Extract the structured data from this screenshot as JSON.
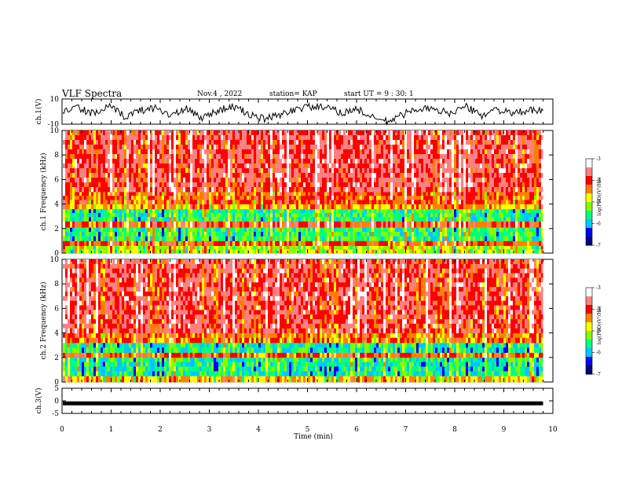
{
  "header": {
    "title": "VLF Spectra",
    "date": "Nov.4 , 2022",
    "station": "station= KAP",
    "start_ut": "start UT =  9 : 30: 1"
  },
  "colors": {
    "spectrogram_scale": [
      "#000080",
      "#0000ff",
      "#00c8ff",
      "#00ff80",
      "#80ff00",
      "#ffff00",
      "#ff8000",
      "#ff0000",
      "#ff8080",
      "#ffffff"
    ],
    "trace": "#000000",
    "background": "#ffffff"
  },
  "chart_data": [
    {
      "type": "line",
      "panel": "ch1-waveform",
      "ylabel": "ch.1(V)",
      "ylim": [
        -10,
        10
      ],
      "y_ticks": [
        "10",
        "-10"
      ],
      "xlim": [
        0,
        10
      ],
      "data_end_min": 9.8,
      "series": [
        {
          "y": [
            0.5,
            3.0,
            -2.0,
            4.0,
            -4.0,
            1.0,
            3.0,
            -3.0,
            2.0,
            -5.0,
            1.0,
            4.0,
            -2.0,
            -6.0,
            -3.0,
            2.0,
            4.0,
            3.0,
            -1.0,
            2.0,
            -5.0,
            -8.0,
            -2.0,
            3.0,
            1.0,
            -1.0,
            4.0,
            -3.0,
            2.0,
            -2.0,
            1.0,
            0.0
          ]
        }
      ]
    },
    {
      "type": "heatmap",
      "panel": "ch1-spectrogram",
      "ylabel": "ch.1 Frequency (kHz)",
      "ylim": [
        0,
        10
      ],
      "y_ticks": [
        "0",
        "2",
        "4",
        "6",
        "8",
        "10"
      ],
      "xlim": [
        0,
        10
      ],
      "data_end_min": 9.8,
      "colorbar": {
        "label": "log(PSD)(V²/Hz)",
        "range": [
          -7,
          -3
        ],
        "ticks": [
          "-3",
          "-4",
          "-5",
          "-6",
          "-7"
        ]
      },
      "bands_khz": [
        {
          "from": 0,
          "to": 0.6,
          "level": -5.0
        },
        {
          "from": 0.6,
          "to": 1.0,
          "level": -4.2
        },
        {
          "from": 1.0,
          "to": 2.1,
          "level": -5.5
        },
        {
          "from": 2.1,
          "to": 2.6,
          "level": -4.0
        },
        {
          "from": 2.6,
          "to": 3.6,
          "level": -5.5
        },
        {
          "from": 3.6,
          "to": 4.0,
          "level": -4.5
        },
        {
          "from": 4.0,
          "to": 5.0,
          "level": -4.2
        },
        {
          "from": 5.0,
          "to": 10.0,
          "level": -3.8
        }
      ]
    },
    {
      "type": "heatmap",
      "panel": "ch2-spectrogram",
      "ylabel": "ch.2 Frequency (kHz)",
      "ylim": [
        0,
        10
      ],
      "y_ticks": [
        "0",
        "2",
        "4",
        "6",
        "8",
        "10"
      ],
      "xlim": [
        0,
        10
      ],
      "data_end_min": 9.8,
      "colorbar": {
        "label": "log(PSD)(V²/Hz)",
        "range": [
          -7,
          -3
        ],
        "ticks": [
          "-3",
          "-4",
          "-5",
          "-6",
          "-7"
        ]
      },
      "bands_khz": [
        {
          "from": 0,
          "to": 0.5,
          "level": -4.6
        },
        {
          "from": 0.5,
          "to": 2.0,
          "level": -5.6
        },
        {
          "from": 2.0,
          "to": 2.4,
          "level": -4.2
        },
        {
          "from": 2.4,
          "to": 3.2,
          "level": -5.6
        },
        {
          "from": 3.2,
          "to": 4.0,
          "level": -4.3
        },
        {
          "from": 4.0,
          "to": 10.0,
          "level": -3.8
        }
      ]
    },
    {
      "type": "line",
      "panel": "ch3-waveform",
      "ylabel": "ch.3(V)",
      "ylim": [
        -5,
        5
      ],
      "y_ticks": [
        "5",
        "0",
        "-5"
      ],
      "xlim": [
        0,
        10
      ],
      "data_end_min": 9.8,
      "series": [
        {
          "y": [
            -1.0,
            -1.0
          ]
        }
      ]
    }
  ],
  "x_axis": {
    "label": "Time (min)",
    "ticks": [
      "0",
      "1",
      "2",
      "3",
      "4",
      "5",
      "6",
      "7",
      "8",
      "9",
      "10"
    ]
  }
}
